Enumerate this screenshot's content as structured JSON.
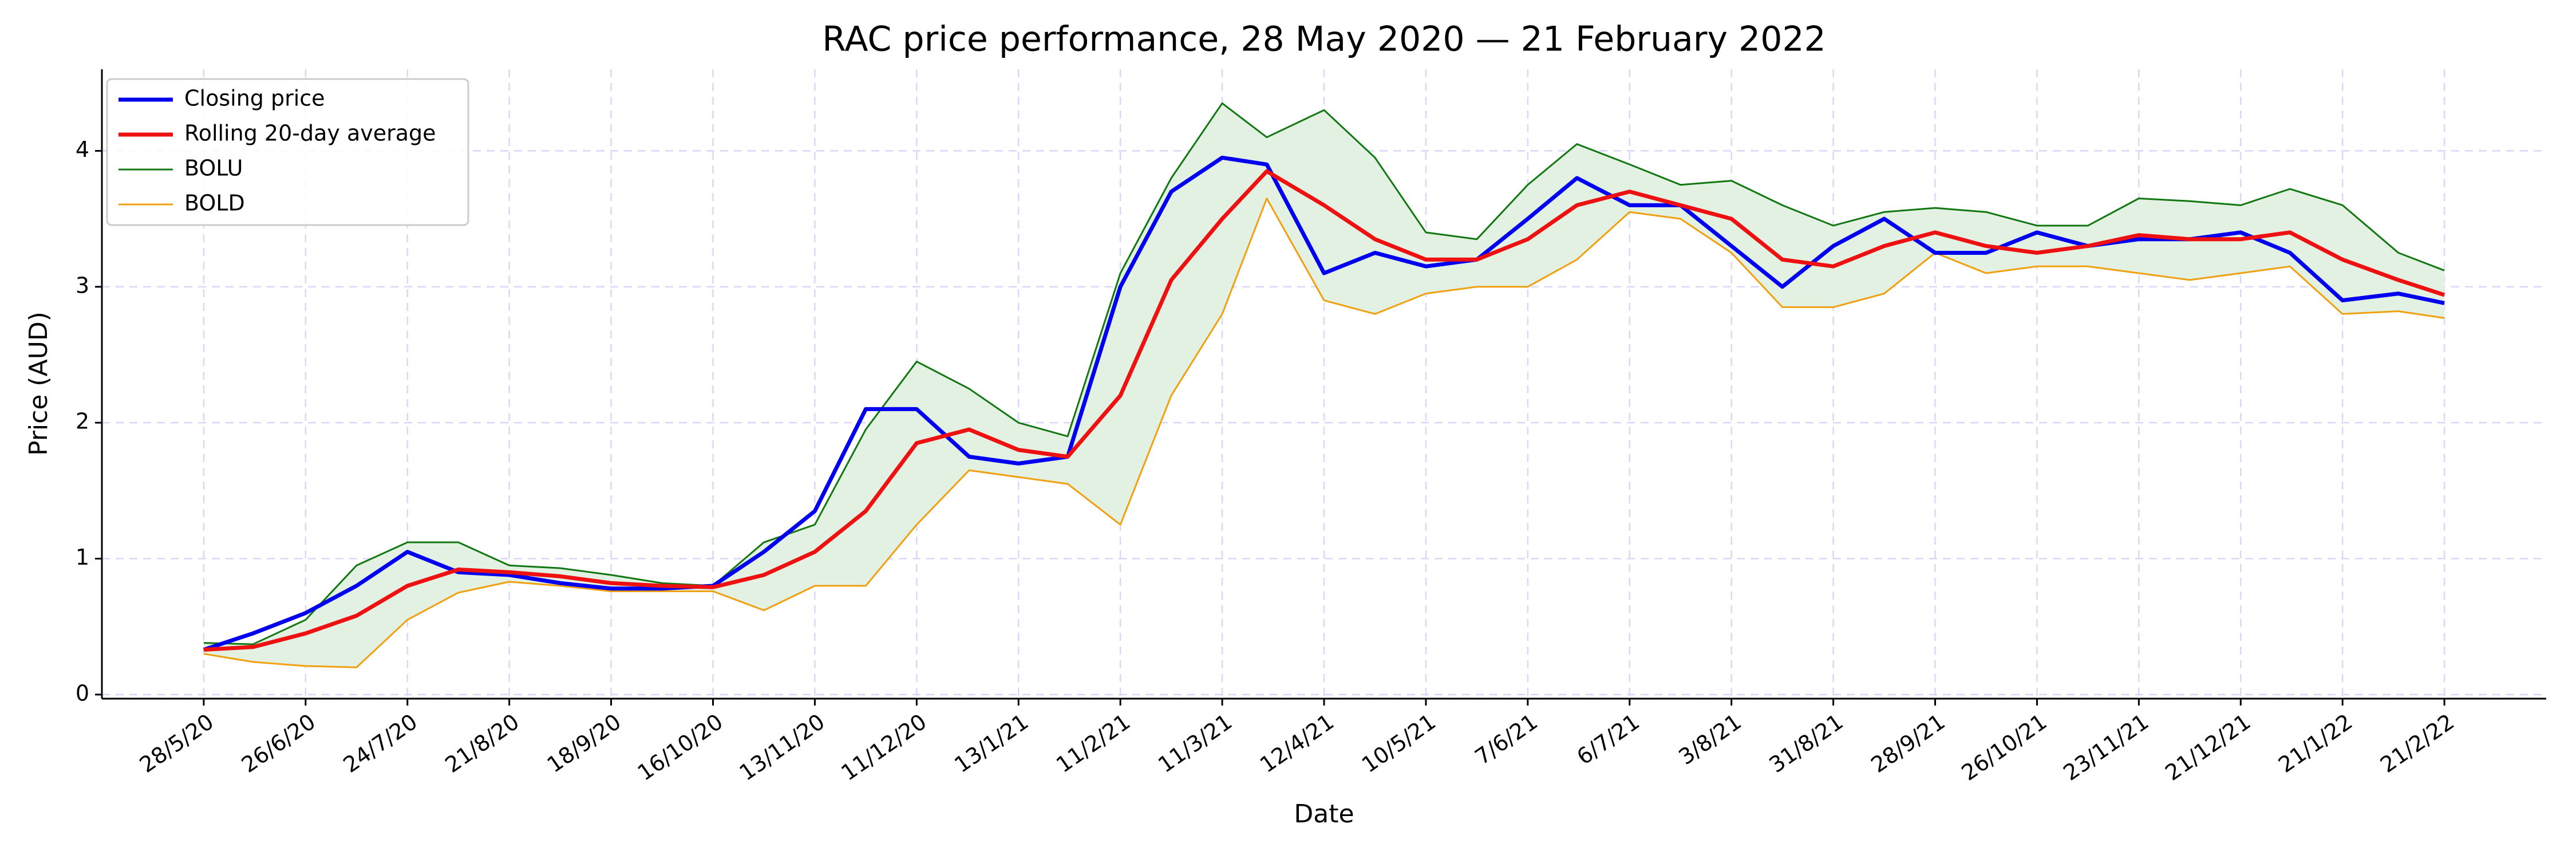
{
  "chart_data": {
    "type": "line",
    "title": "RAC price performance, 28 May 2020 — 21 February 2022",
    "x_label": "Date",
    "y_label": "Price (AUD)",
    "x": [
      "2020-05-28",
      "2020-06-11",
      "2020-06-26",
      "2020-07-10",
      "2020-07-24",
      "2020-08-07",
      "2020-08-21",
      "2020-09-04",
      "2020-09-18",
      "2020-10-02",
      "2020-10-16",
      "2020-10-30",
      "2020-11-13",
      "2020-11-27",
      "2020-12-11",
      "2020-12-28",
      "2021-01-13",
      "2021-01-27",
      "2021-02-11",
      "2021-02-25",
      "2021-03-11",
      "2021-03-25",
      "2021-04-12",
      "2021-04-26",
      "2021-05-10",
      "2021-05-24",
      "2021-06-07",
      "2021-06-21",
      "2021-07-06",
      "2021-07-20",
      "2021-08-03",
      "2021-08-17",
      "2021-08-31",
      "2021-09-14",
      "2021-09-28",
      "2021-10-12",
      "2021-10-26",
      "2021-11-09",
      "2021-11-23",
      "2021-12-07",
      "2021-12-21",
      "2022-01-05",
      "2022-01-21",
      "2022-02-07",
      "2022-02-21"
    ],
    "series": [
      {
        "name": "Closing price",
        "color": "#0000ee",
        "width": 7,
        "values": [
          0.33,
          0.45,
          0.6,
          0.8,
          1.05,
          0.9,
          0.88,
          0.82,
          0.78,
          0.78,
          0.8,
          1.05,
          1.35,
          2.1,
          2.1,
          1.75,
          1.7,
          1.75,
          3.0,
          3.7,
          3.95,
          3.9,
          3.1,
          3.25,
          3.15,
          3.2,
          3.5,
          3.8,
          3.6,
          3.6,
          3.3,
          3.0,
          3.3,
          3.5,
          3.25,
          3.25,
          3.4,
          3.3,
          3.35,
          3.35,
          3.4,
          3.25,
          2.9,
          2.95,
          2.88
        ]
      },
      {
        "name": "Rolling 20-day average",
        "color": "#ee1111",
        "width": 7,
        "values": [
          0.33,
          0.35,
          0.45,
          0.58,
          0.8,
          0.92,
          0.9,
          0.87,
          0.82,
          0.8,
          0.79,
          0.88,
          1.05,
          1.35,
          1.85,
          1.95,
          1.8,
          1.75,
          2.2,
          3.05,
          3.5,
          3.85,
          3.6,
          3.35,
          3.2,
          3.2,
          3.35,
          3.6,
          3.7,
          3.6,
          3.5,
          3.2,
          3.15,
          3.3,
          3.4,
          3.3,
          3.25,
          3.3,
          3.38,
          3.35,
          3.35,
          3.4,
          3.2,
          3.05,
          2.94
        ]
      },
      {
        "name": "BOLU",
        "color": "#117711",
        "width": 3,
        "values": [
          0.38,
          0.37,
          0.55,
          0.95,
          1.12,
          1.12,
          0.95,
          0.93,
          0.88,
          0.82,
          0.8,
          1.12,
          1.25,
          1.95,
          2.45,
          2.25,
          2.0,
          1.9,
          3.1,
          3.8,
          4.35,
          4.1,
          4.3,
          3.95,
          3.4,
          3.35,
          3.75,
          4.05,
          3.9,
          3.75,
          3.78,
          3.6,
          3.45,
          3.55,
          3.58,
          3.55,
          3.45,
          3.45,
          3.65,
          3.63,
          3.6,
          3.72,
          3.6,
          3.25,
          3.12
        ]
      },
      {
        "name": "BOLD",
        "color": "#f0a010",
        "width": 3,
        "values": [
          0.3,
          0.24,
          0.21,
          0.2,
          0.55,
          0.75,
          0.83,
          0.8,
          0.76,
          0.76,
          0.76,
          0.62,
          0.8,
          0.8,
          1.25,
          1.65,
          1.6,
          1.55,
          1.25,
          2.2,
          2.8,
          3.65,
          2.9,
          2.8,
          2.95,
          3.0,
          3.0,
          3.2,
          3.55,
          3.5,
          3.25,
          2.85,
          2.85,
          2.95,
          3.25,
          3.1,
          3.15,
          3.15,
          3.1,
          3.05,
          3.1,
          3.15,
          2.8,
          2.82,
          2.77
        ]
      }
    ],
    "band_color": "#e2f1e2",
    "xlim": [
      "2020-04-29",
      "2022-03-24"
    ],
    "xticks": [
      {
        "value": "2020-05-28",
        "label": "28/5/20"
      },
      {
        "value": "2020-06-26",
        "label": "26/6/20"
      },
      {
        "value": "2020-07-24",
        "label": "24/7/20"
      },
      {
        "value": "2020-08-21",
        "label": "21/8/20"
      },
      {
        "value": "2020-09-18",
        "label": "18/9/20"
      },
      {
        "value": "2020-10-16",
        "label": "16/10/20"
      },
      {
        "value": "2020-11-13",
        "label": "13/11/20"
      },
      {
        "value": "2020-12-11",
        "label": "11/12/20"
      },
      {
        "value": "2021-01-13",
        "label": "13/1/21"
      },
      {
        "value": "2021-02-11",
        "label": "11/2/21"
      },
      {
        "value": "2021-03-11",
        "label": "11/3/21"
      },
      {
        "value": "2021-04-12",
        "label": "12/4/21"
      },
      {
        "value": "2021-05-10",
        "label": "10/5/21"
      },
      {
        "value": "2021-06-07",
        "label": "7/6/21"
      },
      {
        "value": "2021-07-06",
        "label": "6/7/21"
      },
      {
        "value": "2021-08-03",
        "label": "3/8/21"
      },
      {
        "value": "2021-08-31",
        "label": "31/8/21"
      },
      {
        "value": "2021-09-28",
        "label": "28/9/21"
      },
      {
        "value": "2021-10-26",
        "label": "26/10/21"
      },
      {
        "value": "2021-11-23",
        "label": "23/11/21"
      },
      {
        "value": "2021-12-21",
        "label": "21/12/21"
      },
      {
        "value": "2022-01-21",
        "label": "21/1/22"
      },
      {
        "value": "2022-02-21",
        "label": "21/2/22"
      }
    ],
    "ylim": [
      -0.03,
      4.6
    ],
    "yticks": [
      0,
      1,
      2,
      3,
      4
    ],
    "grid": true,
    "legend": "upper left"
  }
}
